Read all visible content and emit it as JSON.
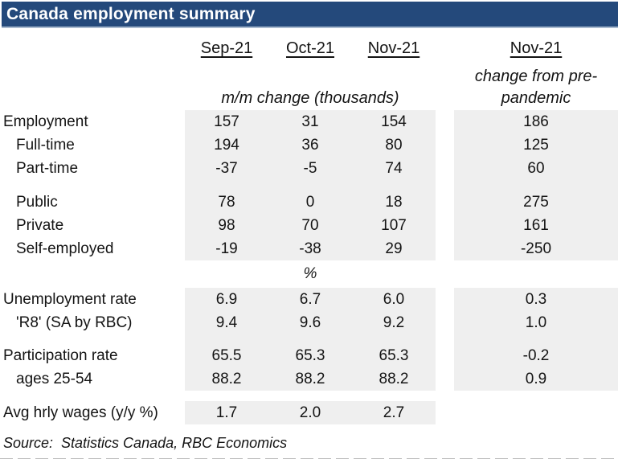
{
  "colors": {
    "navy": "#24497B",
    "navy_edge": "#A9BACF",
    "block_gray": "#EFEFEF"
  },
  "title": "Canada employment summary",
  "header": {
    "col1": "Sep-21",
    "col2": "Oct-21",
    "col3": "Nov-21",
    "col4": "Nov-21",
    "months_unit": "m/m change (thousands)",
    "change_line1": "change from pre-",
    "change_line2": "pandemic",
    "percent_unit": "%"
  },
  "rows": [
    {
      "label": "Employment",
      "values": [
        "157",
        "31",
        "154"
      ],
      "change": "186"
    },
    {
      "label": "Full-time",
      "values": [
        "194",
        "36",
        "80"
      ],
      "change": "125"
    },
    {
      "label": "Part-time",
      "values": [
        "-37",
        "-5",
        "74"
      ],
      "change": "60"
    },
    {
      "label": "Public",
      "values": [
        "78",
        "0",
        "18"
      ],
      "change": "275"
    },
    {
      "label": "Private",
      "values": [
        "98",
        "70",
        "107"
      ],
      "change": "161"
    },
    {
      "label": "Self-employed",
      "values": [
        "-19",
        "-38",
        "29"
      ],
      "change": "-250"
    },
    {
      "label": "Unemployment rate",
      "values": [
        "6.9",
        "6.7",
        "6.0"
      ],
      "change": "0.3"
    },
    {
      "label": "'R8' (SA by RBC)",
      "values": [
        "9.4",
        "9.6",
        "9.2"
      ],
      "change": "1.0"
    },
    {
      "label": "Participation rate",
      "values": [
        "65.5",
        "65.3",
        "65.3"
      ],
      "change": "-0.2"
    },
    {
      "label": "ages 25-54",
      "values": [
        "88.2",
        "88.2",
        "88.2"
      ],
      "change": "0.9"
    },
    {
      "label": "Avg hrly wages (y/y %)",
      "values": [
        "1.7",
        "2.0",
        "2.7"
      ],
      "change": ""
    }
  ],
  "source": "Source:  Statistics Canada, RBC Economics",
  "chart_data": {
    "type": "table",
    "title": "Canada employment summary",
    "columns": [
      "",
      "Sep-21",
      "Oct-21",
      "Nov-21",
      "Nov-21 change from pre-pandemic"
    ],
    "units": {
      "employment_rows": "m/m change (thousands)",
      "rate_rows": "%"
    },
    "rows": [
      [
        "Employment",
        "157",
        "31",
        "154",
        "186"
      ],
      [
        "Full-time",
        "194",
        "36",
        "80",
        "125"
      ],
      [
        "Part-time",
        "-37",
        "-5",
        "74",
        "60"
      ],
      [
        "Public",
        "78",
        "0",
        "18",
        "275"
      ],
      [
        "Private",
        "98",
        "70",
        "107",
        "161"
      ],
      [
        "Self-employed",
        "-19",
        "-38",
        "29",
        "-250"
      ],
      [
        "Unemployment rate",
        "6.9",
        "6.7",
        "6.0",
        "0.3"
      ],
      [
        "'R8' (SA by RBC)",
        "9.4",
        "9.6",
        "9.2",
        "1.0"
      ],
      [
        "Participation rate",
        "65.5",
        "65.3",
        "65.3",
        "-0.2"
      ],
      [
        "ages 25-54",
        "88.2",
        "88.2",
        "88.2",
        "0.9"
      ],
      [
        "Avg hrly wages (y/y %)",
        "1.7",
        "2.0",
        "2.7",
        ""
      ]
    ],
    "source": "Statistics Canada, RBC Economics"
  }
}
